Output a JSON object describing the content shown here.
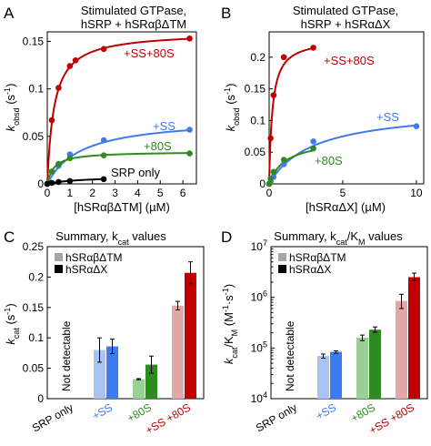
{
  "colors": {
    "red": "#c00000",
    "red_light": "#e2a7a7",
    "blue": "#3d7bf0",
    "blue_light": "#a9c3f5",
    "green": "#2e8a21",
    "green_light": "#9ad095",
    "black": "#000000",
    "grey_legend": "#a6a6a6"
  },
  "chart_data": [
    {
      "panel": "A",
      "type": "line",
      "title_line1": "Stimulated GTPase,",
      "title_line2": "hSRP + hSRαβΔTM",
      "ylabel_main": "k",
      "ylabel_sub": "obsd",
      "ylabel_unit": "(s",
      "ylabel_exp": "-1",
      "ylabel_close": ")",
      "xlabel": "[hSRαβΔTM] (µM)",
      "xlim": [
        0,
        6.6
      ],
      "ylim": [
        0,
        0.16
      ],
      "xticks": [
        0,
        1,
        2,
        3,
        4,
        5,
        6
      ],
      "yticks": [
        0,
        0.05,
        0.1,
        0.15
      ],
      "ytick_labels": [
        "0",
        "0.05",
        "0.1",
        "0.15"
      ],
      "series": [
        {
          "name": "+SS+80S",
          "color": "red",
          "kmax": 0.16,
          "K": 0.3,
          "x": [
            0,
            0.2,
            0.5,
            1,
            1.25,
            2.5,
            6.3
          ],
          "y": [
            0,
            0.067,
            0.101,
            0.124,
            0.13,
            0.142,
            0.153
          ]
        },
        {
          "name": "+SS",
          "color": "blue",
          "kmax": 0.07,
          "K": 1.5,
          "x": [
            0,
            0.5,
            1,
            2.5,
            6.3
          ],
          "y": [
            0,
            0.019,
            0.031,
            0.046,
            0.057
          ]
        },
        {
          "name": "+80S",
          "color": "green",
          "kmax": 0.034,
          "K": 0.3,
          "x": [
            0,
            0.2,
            0.5,
            1,
            2.5,
            6.3
          ],
          "y": [
            0,
            0.013,
            0.021,
            0.027,
            0.03,
            0.032
          ]
        },
        {
          "name": "SRP only",
          "color": "black",
          "kmax": 0.008,
          "K": 1.5,
          "x": [
            0,
            0.2,
            0.5,
            1,
            2.5
          ],
          "y": [
            0,
            0.001,
            0.002,
            0.003,
            0.005
          ]
        }
      ]
    },
    {
      "panel": "B",
      "type": "line",
      "title_line1": "Stimulated GTPase,",
      "title_line2": "hSRP + hSRαΔX",
      "ylabel_main": "k",
      "ylabel_sub": "obsd",
      "ylabel_unit": "(s",
      "ylabel_exp": "-1",
      "ylabel_close": ")",
      "xlabel": "[hSRαΔX] (µM)",
      "xlim": [
        0,
        10.5
      ],
      "ylim": [
        0,
        0.24
      ],
      "xticks": [
        0,
        5,
        10
      ],
      "yticks": [
        0,
        0.05,
        0.1,
        0.15,
        0.2
      ],
      "ytick_labels": [
        "0",
        "0.05",
        "0.1",
        "0.15",
        "0.2"
      ],
      "series": [
        {
          "name": "+SS+80S",
          "color": "red",
          "kmax": 0.23,
          "K": 0.22,
          "x": [
            0,
            0.1,
            0.3,
            1,
            3
          ],
          "y": [
            0,
            0.072,
            0.14,
            0.2,
            0.215
          ]
        },
        {
          "name": "+SS",
          "color": "blue",
          "kmax": 0.12,
          "K": 3.0,
          "x": [
            0,
            0.1,
            0.3,
            1,
            3,
            10
          ],
          "y": [
            0,
            0.004,
            0.011,
            0.031,
            0.067,
            0.091
          ]
        },
        {
          "name": "+80S",
          "color": "green",
          "kmax": 0.072,
          "K": 1.1,
          "x": [
            0,
            0.1,
            0.3,
            1,
            3
          ],
          "y": [
            0,
            0.008,
            0.019,
            0.038,
            0.056
          ]
        }
      ]
    },
    {
      "panel": "C",
      "type": "bar",
      "title": "Summary, k",
      "title_sub": "cat",
      "title_tail": " values",
      "ylabel_main": "k",
      "ylabel_sub": "cat",
      "ylabel_unit": "(s",
      "ylabel_exp": "-1",
      "ylabel_close": ")",
      "ylim": [
        0,
        0.25
      ],
      "yticks": [
        0,
        0.05,
        0.1,
        0.15,
        0.2,
        0.25
      ],
      "ytick_labels": [
        "0",
        "0.05",
        "0.1",
        "0.15",
        "0.2",
        "0.25"
      ],
      "legend": [
        "hSRαβΔTM",
        "hSRαΔX"
      ],
      "categories": [
        "SRP only",
        "+SS",
        "+80S",
        "+SS +80S"
      ],
      "category_colors": [
        "black",
        "blue",
        "green",
        "red"
      ],
      "not_detectable": "Not detectable",
      "series": [
        {
          "name": "hSRαβΔTM",
          "values": [
            null,
            0.08,
            0.032,
            0.153
          ],
          "errors": [
            null,
            0.02,
            0.001,
            0.007
          ]
        },
        {
          "name": "hSRαΔX",
          "values": [
            null,
            0.086,
            0.056,
            0.207
          ],
          "errors": [
            null,
            0.012,
            0.014,
            0.018
          ]
        }
      ]
    },
    {
      "panel": "D",
      "type": "bar",
      "title": "Summary, k",
      "title_sub": "cat",
      "title_mid": "/K",
      "title_sub2": "M",
      "title_tail": " values",
      "ylabel_main": "k",
      "ylabel_sub": "cat",
      "ylabel_mid": "/K",
      "ylabel_sub2": "M",
      "ylabel_unit": "(M",
      "ylabel_exp1": "-1",
      "ylabel_dot": "·s",
      "ylabel_exp2": "-1",
      "ylabel_close": ")",
      "yscale": "log",
      "ylim": [
        10000,
        10000000
      ],
      "yticks": [
        10000,
        100000,
        1000000,
        10000000
      ],
      "ytick_base": "10",
      "ytick_exps": [
        "4",
        "5",
        "6",
        "7"
      ],
      "legend": [
        "hSRαβΔTM",
        "hSRαΔX"
      ],
      "categories": [
        "SRP only",
        "+SS",
        "+80S",
        "+SS +80S"
      ],
      "category_colors": [
        "black",
        "blue",
        "green",
        "red"
      ],
      "not_detectable": "Not detectable",
      "series": [
        {
          "name": "hSRαβΔTM",
          "values": [
            null,
            70000,
            160000,
            850000
          ],
          "errors_low": [
            null,
            63000,
            140000,
            600000
          ],
          "errors_high": [
            null,
            76000,
            180000,
            1150000
          ]
        },
        {
          "name": "hSRαΔX",
          "values": [
            null,
            84000,
            230000,
            2500000
          ],
          "errors_low": [
            null,
            79000,
            205000,
            2150000
          ],
          "errors_high": [
            null,
            88000,
            260000,
            3000000
          ]
        }
      ]
    }
  ]
}
